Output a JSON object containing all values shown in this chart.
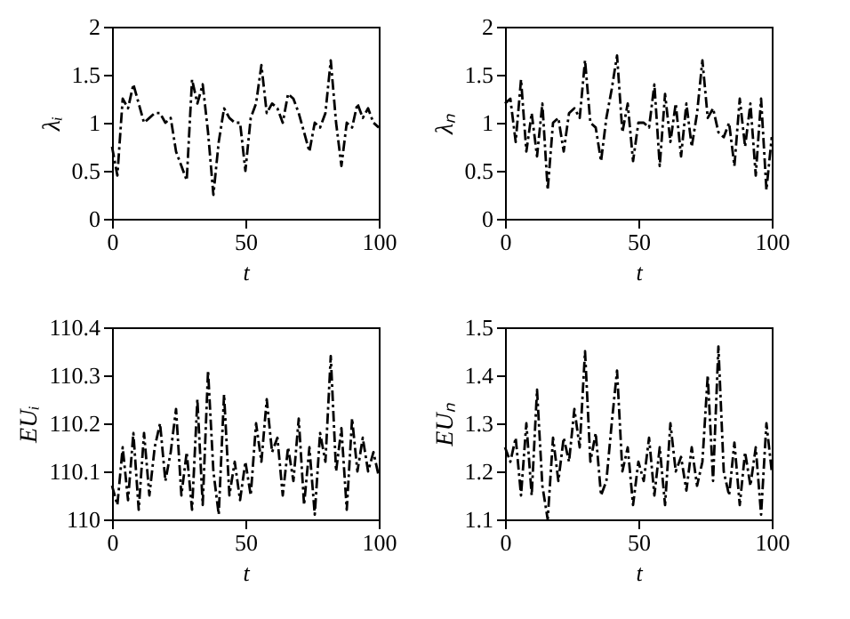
{
  "chart_data": [
    {
      "type": "line",
      "xlabel": "t",
      "ylabel": "λᵢ",
      "xlim": [
        0,
        100
      ],
      "xticks": [
        0,
        50,
        100
      ],
      "ylim": [
        0,
        2
      ],
      "yticks": [
        0,
        0.5,
        1,
        1.5,
        2
      ],
      "grid": false,
      "marker": "none",
      "line_style": "dashed",
      "x": [
        0,
        2,
        4,
        6,
        8,
        10,
        12,
        14,
        16,
        18,
        20,
        22,
        24,
        26,
        28,
        30,
        32,
        34,
        36,
        38,
        40,
        42,
        44,
        46,
        48,
        50,
        52,
        54,
        56,
        58,
        60,
        62,
        64,
        66,
        68,
        70,
        72,
        74,
        76,
        78,
        80,
        82,
        84,
        86,
        88,
        90,
        92,
        94,
        96,
        98,
        100
      ],
      "series": [
        {
          "color": "#000000",
          "values": [
            0.75,
            0.45,
            1.25,
            1.15,
            1.4,
            1.2,
            1.0,
            1.05,
            1.1,
            1.1,
            1.0,
            1.05,
            0.7,
            0.55,
            0.4,
            1.45,
            1.2,
            1.4,
            0.9,
            0.25,
            0.8,
            1.15,
            1.05,
            1.0,
            1.0,
            0.5,
            1.05,
            1.2,
            1.6,
            1.1,
            1.2,
            1.15,
            1.0,
            1.3,
            1.25,
            1.1,
            0.9,
            0.7,
            1.0,
            0.95,
            1.1,
            1.65,
            1.0,
            0.55,
            1.0,
            0.95,
            1.2,
            1.05,
            1.15,
            1.0,
            0.95
          ]
        }
      ]
    },
    {
      "type": "line",
      "xlabel": "t",
      "ylabel": "λₙ",
      "xlim": [
        0,
        100
      ],
      "xticks": [
        0,
        50,
        100
      ],
      "ylim": [
        0,
        2
      ],
      "yticks": [
        0,
        0.5,
        1,
        1.5,
        2
      ],
      "grid": false,
      "marker": "none",
      "line_style": "dashed",
      "x": [
        0,
        2,
        4,
        6,
        8,
        10,
        12,
        14,
        16,
        18,
        20,
        22,
        24,
        26,
        28,
        30,
        32,
        34,
        36,
        38,
        40,
        42,
        44,
        46,
        48,
        50,
        52,
        54,
        56,
        58,
        60,
        62,
        64,
        66,
        68,
        70,
        72,
        74,
        76,
        78,
        80,
        82,
        84,
        86,
        88,
        90,
        92,
        94,
        96,
        98,
        100
      ],
      "series": [
        {
          "color": "#000000",
          "values": [
            1.2,
            1.25,
            0.8,
            1.45,
            0.7,
            1.1,
            0.65,
            1.2,
            0.3,
            1.0,
            1.05,
            0.7,
            1.1,
            1.15,
            1.05,
            1.65,
            1.0,
            0.95,
            0.6,
            1.05,
            1.35,
            1.7,
            0.9,
            1.2,
            0.6,
            1.0,
            1.0,
            0.95,
            1.4,
            0.55,
            1.3,
            0.8,
            1.2,
            0.65,
            1.2,
            0.75,
            1.1,
            1.65,
            1.05,
            1.15,
            0.9,
            0.85,
            1.0,
            0.55,
            1.25,
            0.75,
            1.2,
            0.45,
            1.25,
            0.3,
            0.85
          ]
        }
      ]
    },
    {
      "type": "line",
      "xlabel": "t",
      "ylabel": "EUᵢ",
      "xlim": [
        0,
        100
      ],
      "xticks": [
        0,
        50,
        100
      ],
      "ylim": [
        110,
        110.4
      ],
      "yticks": [
        110,
        110.1,
        110.2,
        110.3,
        110.4
      ],
      "grid": false,
      "marker": "none",
      "line_style": "dashed",
      "x": [
        0,
        2,
        4,
        6,
        8,
        10,
        12,
        14,
        16,
        18,
        20,
        22,
        24,
        26,
        28,
        30,
        32,
        34,
        36,
        38,
        40,
        42,
        44,
        46,
        48,
        50,
        52,
        54,
        56,
        58,
        60,
        62,
        64,
        66,
        68,
        70,
        72,
        74,
        76,
        78,
        80,
        82,
        84,
        86,
        88,
        90,
        92,
        94,
        96,
        98,
        100
      ],
      "series": [
        {
          "color": "#000000",
          "values": [
            110.07,
            110.03,
            110.15,
            110.04,
            110.18,
            110.02,
            110.18,
            110.05,
            110.15,
            110.2,
            110.08,
            110.14,
            110.23,
            110.05,
            110.14,
            110.02,
            110.25,
            110.03,
            110.31,
            110.1,
            110.01,
            110.26,
            110.05,
            110.12,
            110.04,
            110.12,
            110.05,
            110.2,
            110.12,
            110.25,
            110.14,
            110.17,
            110.05,
            110.15,
            110.08,
            110.21,
            110.03,
            110.15,
            110.01,
            110.18,
            110.12,
            110.34,
            110.1,
            110.19,
            110.02,
            110.21,
            110.1,
            110.17,
            110.1,
            110.14,
            110.09
          ]
        }
      ]
    },
    {
      "type": "line",
      "xlabel": "t",
      "ylabel": "EUₙ",
      "xlim": [
        0,
        100
      ],
      "xticks": [
        0,
        50,
        100
      ],
      "ylim": [
        1.1,
        1.5
      ],
      "yticks": [
        1.1,
        1.2,
        1.3,
        1.4,
        1.5
      ],
      "grid": false,
      "marker": "none",
      "line_style": "dashed",
      "x": [
        0,
        2,
        4,
        6,
        8,
        10,
        12,
        14,
        16,
        18,
        20,
        22,
        24,
        26,
        28,
        30,
        32,
        34,
        36,
        38,
        40,
        42,
        44,
        46,
        48,
        50,
        52,
        54,
        56,
        58,
        60,
        62,
        64,
        66,
        68,
        70,
        72,
        74,
        76,
        78,
        80,
        82,
        84,
        86,
        88,
        90,
        92,
        94,
        96,
        98,
        100
      ],
      "series": [
        {
          "color": "#000000",
          "values": [
            1.25,
            1.22,
            1.27,
            1.15,
            1.3,
            1.15,
            1.37,
            1.17,
            1.1,
            1.27,
            1.18,
            1.27,
            1.22,
            1.33,
            1.25,
            1.45,
            1.22,
            1.28,
            1.15,
            1.18,
            1.3,
            1.41,
            1.2,
            1.25,
            1.13,
            1.22,
            1.18,
            1.27,
            1.15,
            1.25,
            1.13,
            1.3,
            1.2,
            1.23,
            1.16,
            1.25,
            1.17,
            1.22,
            1.4,
            1.18,
            1.46,
            1.2,
            1.15,
            1.26,
            1.13,
            1.24,
            1.17,
            1.25,
            1.11,
            1.3,
            1.2
          ]
        }
      ]
    }
  ]
}
